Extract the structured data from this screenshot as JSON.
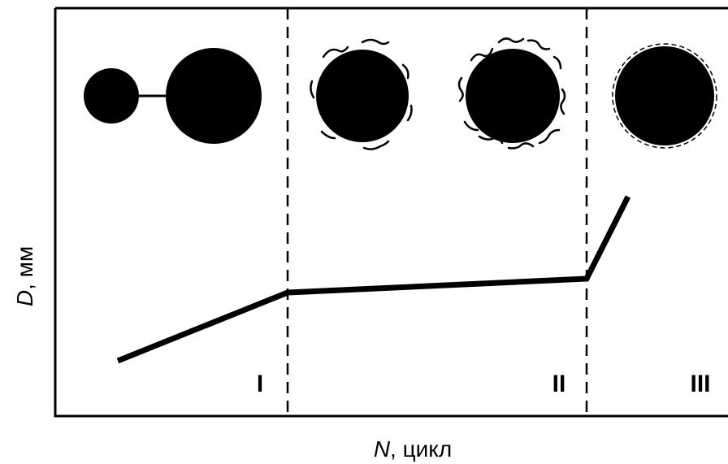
{
  "axis_labels": {
    "y": {
      "symbol": "D",
      "unit": ", мм"
    },
    "x": {
      "symbol": "N",
      "unit": ", цикл"
    }
  },
  "zones": [
    "I",
    "II",
    "III"
  ]
}
